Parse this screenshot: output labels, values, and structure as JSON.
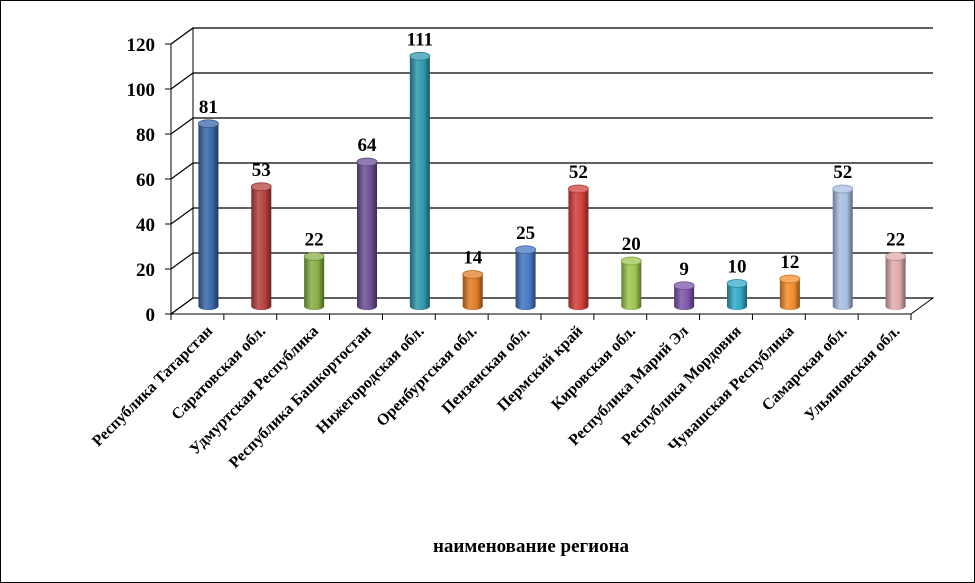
{
  "chart_data": {
    "type": "bar",
    "categories": [
      "Республика Татарстан",
      "Саратовская обл.",
      "Удмуртская Республика",
      "Республика Башкортостан",
      "Нижегородская обл.",
      "Оренбургская обл.",
      "Пензенская обл.",
      "Пермский край",
      "Кировская обл.",
      "Республика Марий Эл",
      "Республика Мордовия",
      "Чувашская Республика",
      "Самарская обл.",
      "Ульяновская обл."
    ],
    "values": [
      81,
      53,
      22,
      64,
      111,
      14,
      25,
      52,
      20,
      9,
      10,
      12,
      52,
      22
    ],
    "data_labels": [
      "81",
      "53",
      "22",
      "64",
      "111",
      "14",
      "25",
      "52",
      "20",
      "9",
      "10",
      "12",
      "52",
      "22"
    ],
    "colors": [
      "#3a66a8",
      "#b5403d",
      "#88ad45",
      "#6d4f95",
      "#2f98ad",
      "#e07c26",
      "#4677c2",
      "#d03f3b",
      "#9dc650",
      "#7b56a8",
      "#31a9c8",
      "#f48d2b",
      "#a9bde0",
      "#e1abab"
    ],
    "xlabel": "наименование региона",
    "ylabel": "",
    "ylim": [
      0,
      120
    ],
    "yticks": [
      "0",
      "20",
      "40",
      "60",
      "80",
      "100",
      "120"
    ],
    "grid": true,
    "style": "3d-cylinder"
  }
}
